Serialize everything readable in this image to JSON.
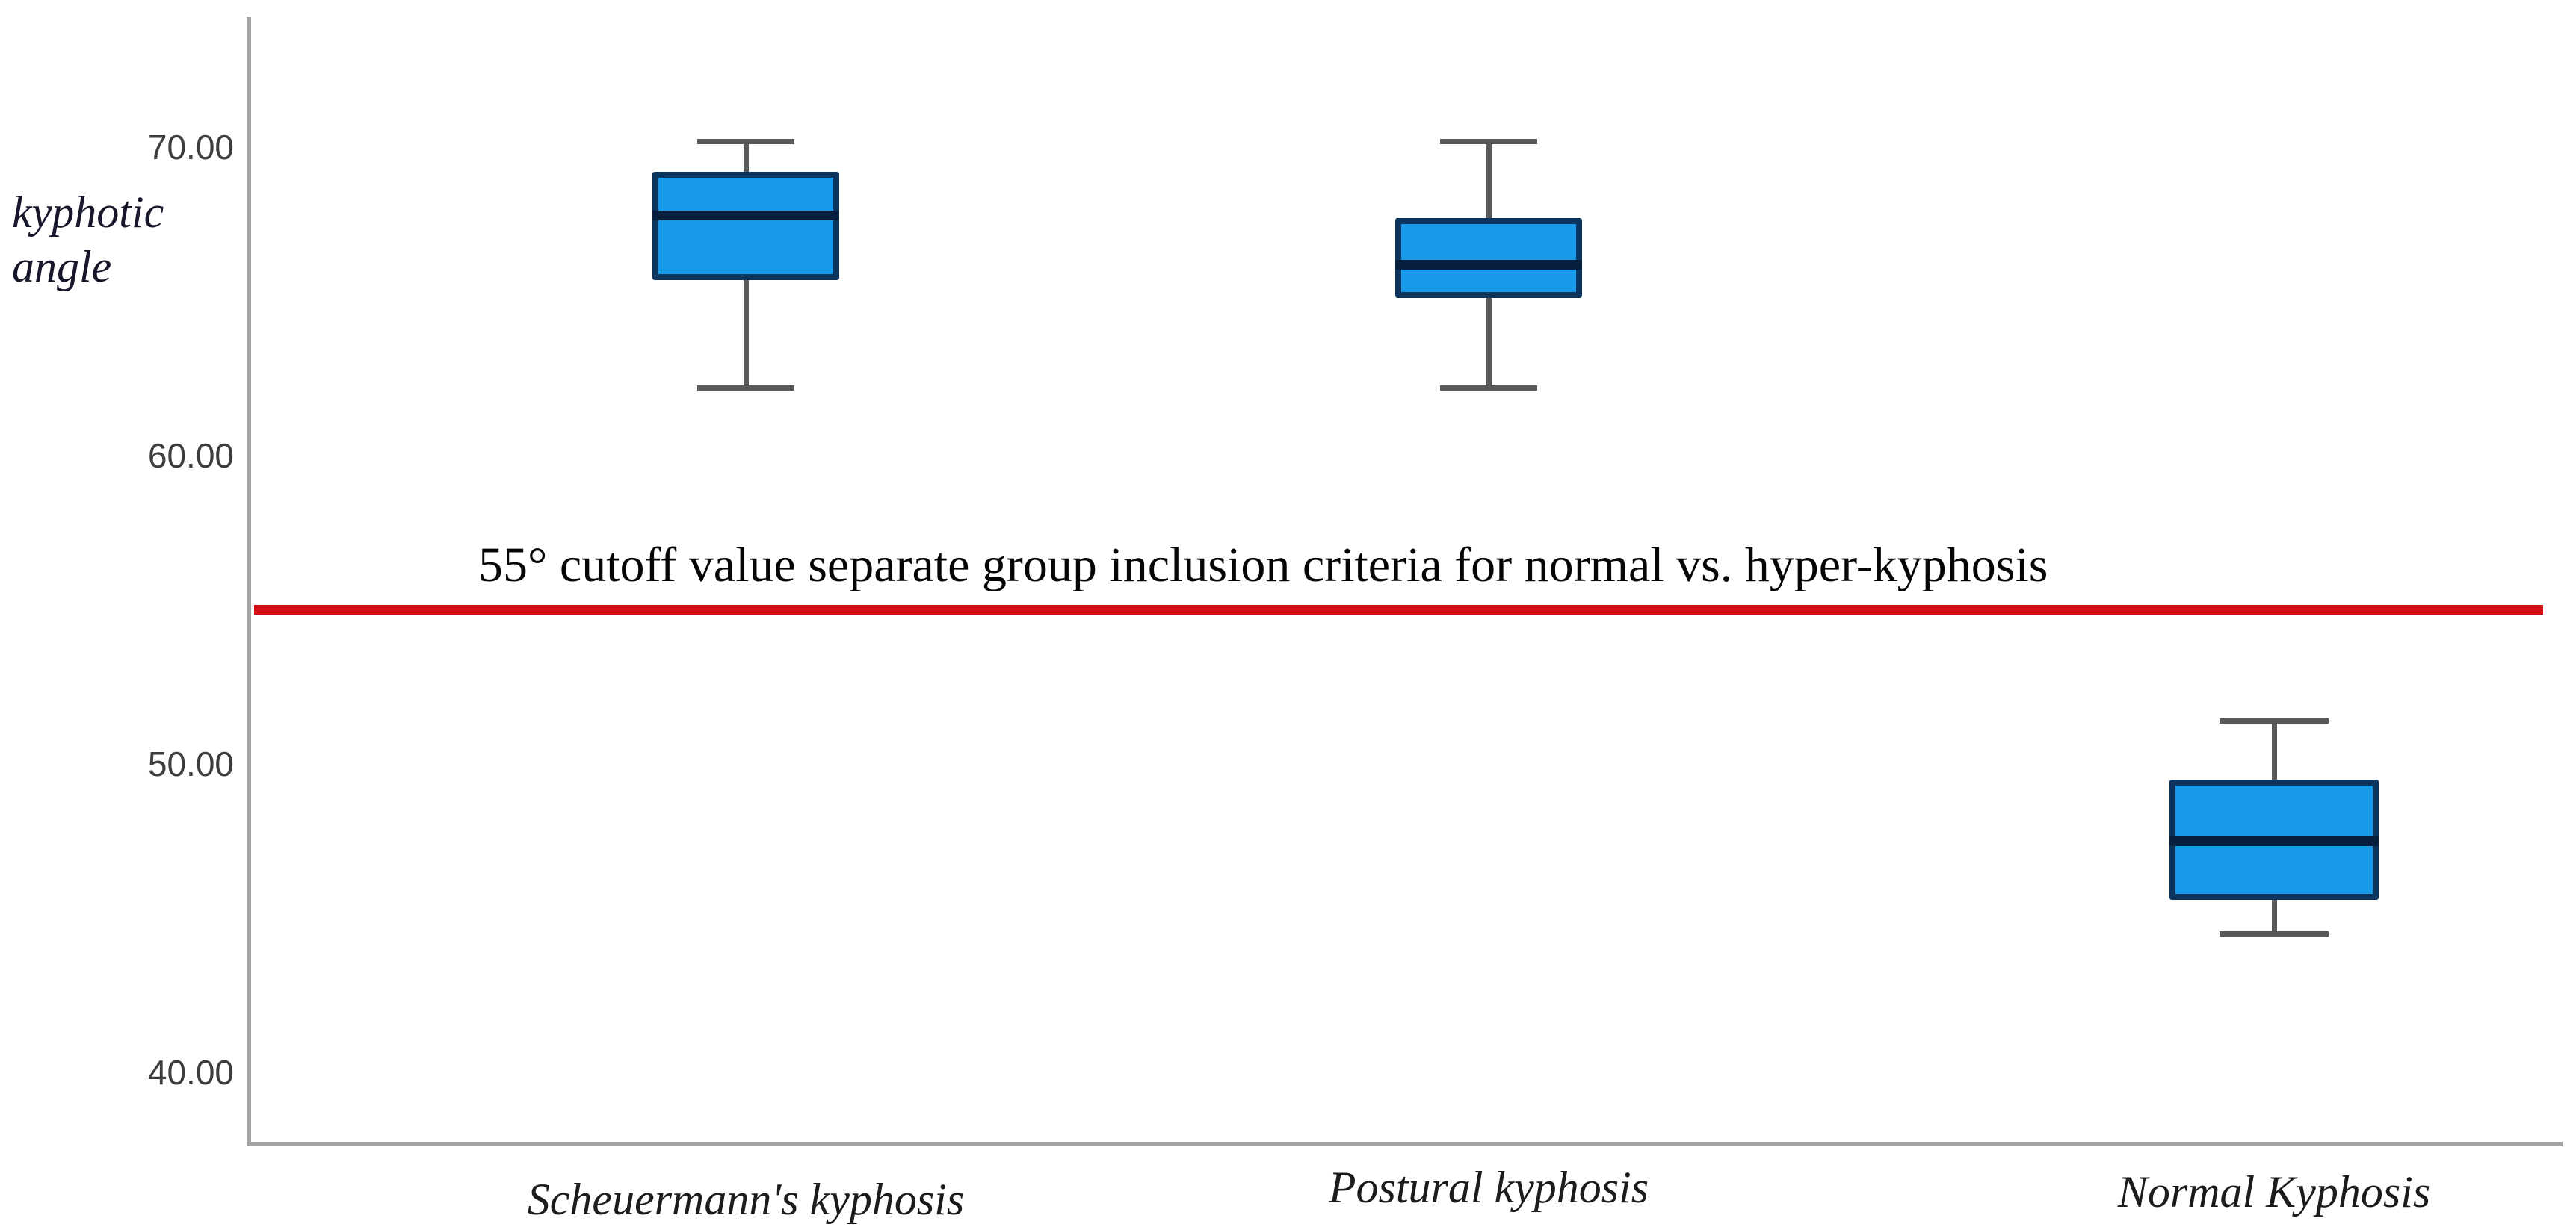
{
  "chart_data": {
    "type": "box",
    "title": "",
    "ylabel": "kyphotic angle",
    "ylabel_lines": [
      "kyphotic",
      "angle"
    ],
    "xlabel": "",
    "ylim": [
      37.7,
      74.2
    ],
    "grid": false,
    "legend": false,
    "yticks": [
      {
        "value": 70,
        "label": "70.00"
      },
      {
        "value": 60,
        "label": "60.00"
      },
      {
        "value": 50,
        "label": "50.00"
      },
      {
        "value": 40,
        "label": "40.00"
      }
    ],
    "categories": [
      "Scheuermann's kyphosis",
      "Postural kyphosis",
      "Normal Kyphosis"
    ],
    "series": [
      {
        "name": "Scheuermann's kyphosis",
        "whisker_low": 62.2,
        "q1": 65.7,
        "median": 67.8,
        "q3": 69.2,
        "whisker_high": 70.2
      },
      {
        "name": "Postural kyphosis",
        "whisker_low": 62.2,
        "q1": 65.1,
        "median": 66.2,
        "q3": 67.7,
        "whisker_high": 70.2
      },
      {
        "name": "Normal Kyphosis",
        "whisker_low": 44.5,
        "q1": 45.6,
        "median": 47.5,
        "q3": 49.5,
        "whisker_high": 51.4
      }
    ],
    "reference_line": {
      "value": 55,
      "label": "55° cutoff value separate group inclusion criteria for normal vs. hyper-kyphosis",
      "color": "#d40e13"
    },
    "colors": {
      "box_fill": "#179be8",
      "box_border": "#0b355e",
      "median": "#071f3f",
      "whisker": "#58595b",
      "axis": "#a3a3a3",
      "tick_text": "#3d3d3d",
      "reference": "#d40e13"
    }
  }
}
